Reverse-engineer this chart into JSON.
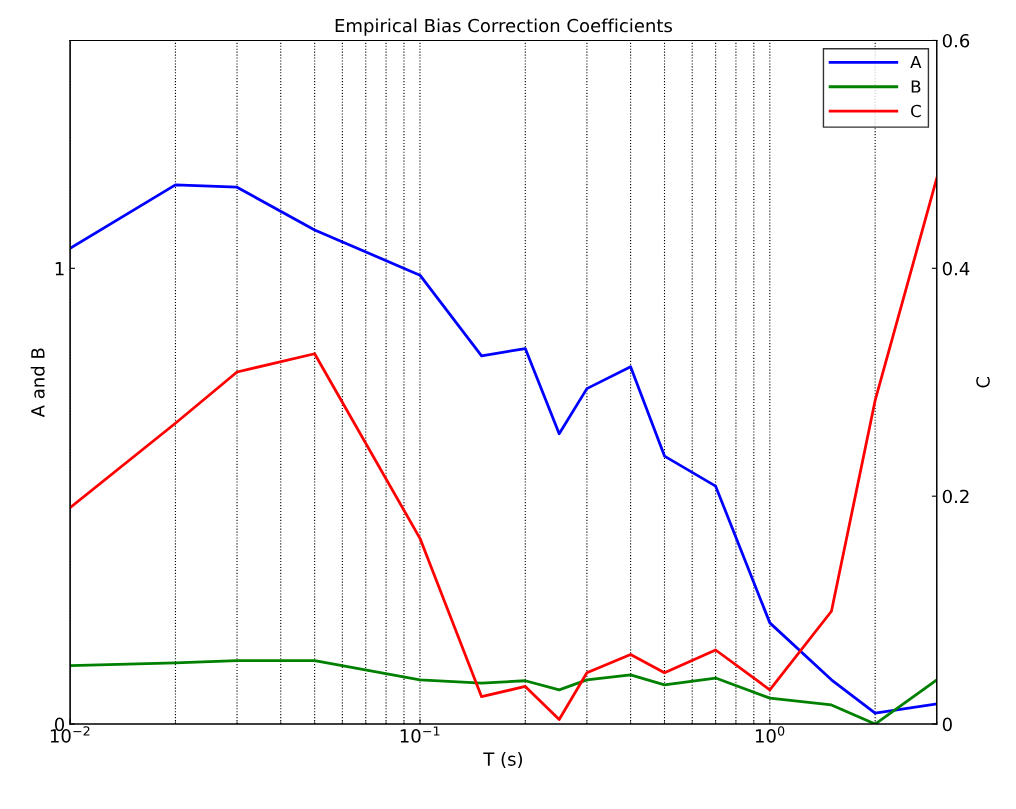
{
  "chart_data": {
    "type": "line",
    "title": "Empirical Bias Correction Coefficients",
    "xlabel": "T (s)",
    "ylabel": "A and B",
    "y2label": "C",
    "log": "x",
    "grid": "x",
    "legend": "top right",
    "line_style": "solid",
    "marker": "none",
    "x": [
      0.01,
      0.02,
      0.03,
      0.05,
      0.1,
      0.15,
      0.2,
      0.25,
      0.3,
      0.4,
      0.5,
      0.7,
      1,
      1.5,
      2,
      3
    ],
    "xlim": [
      0.01,
      3
    ],
    "xticks": [
      {
        "value": 0.01,
        "label": "10$^{−2}$"
      },
      {
        "value": 0.1,
        "label": "10$^{−1}$"
      },
      {
        "value": 1,
        "label": "10$^{0}$"
      }
    ],
    "ylim": [
      0,
      1.5
    ],
    "yticks": [
      0,
      1
    ],
    "y2lim": [
      0,
      0.6
    ],
    "y2ticks": [
      0,
      0.2,
      0.4,
      0.6
    ],
    "series": [
      {
        "name": "A",
        "color": "#0000ff",
        "values": [
          1.044,
          1.183,
          1.178,
          1.084,
          0.985,
          0.808,
          0.824,
          0.637,
          0.736,
          0.784,
          0.588,
          0.522,
          0.222,
          0.097,
          0.024,
          0.044
        ]
      },
      {
        "name": "B",
        "color": "#008000",
        "values": [
          0.128,
          0.134,
          0.139,
          0.139,
          0.097,
          0.09,
          0.095,
          0.075,
          0.097,
          0.108,
          0.086,
          0.101,
          0.057,
          0.042,
          0.0,
          0.097
        ]
      },
      {
        "name": "C",
        "color": "#ff0000",
        "axis": "y2",
        "values": [
          0.19,
          0.264,
          0.309,
          0.325,
          0.163,
          0.024,
          0.033,
          0.004,
          0.045,
          0.061,
          0.045,
          0.065,
          0.03,
          0.099,
          0.284,
          0.479
        ]
      }
    ]
  }
}
